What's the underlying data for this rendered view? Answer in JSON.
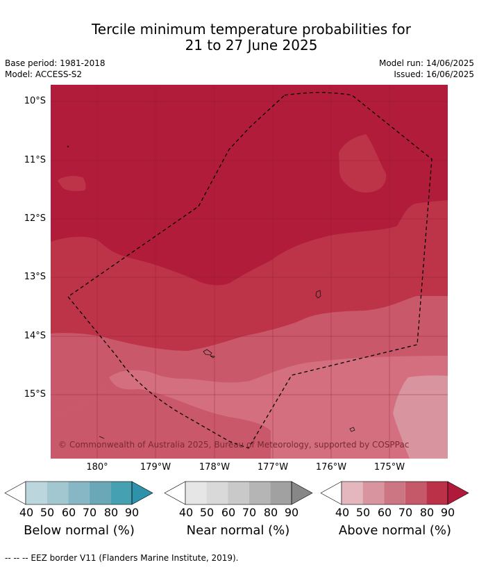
{
  "title": {
    "line1": "Tercile minimum temperature probabilities for",
    "line2": "21 to 27 June 2025"
  },
  "meta": {
    "base_period": "Base period: 1981-2018",
    "model": "Model: ACCESS-S2",
    "model_run": "Model run: 14/06/2025",
    "issued": "Issued: 16/06/2025"
  },
  "map": {
    "lat_labels": [
      "10°S",
      "11°S",
      "12°S",
      "13°S",
      "14°S",
      "15°S"
    ],
    "lon_labels": [
      "180°",
      "179°W",
      "178°W",
      "177°W",
      "176°W",
      "175°W"
    ],
    "copyright": "© Commonwealth of Australia 2025, Bureau of Meteorology, supported by COSPPac",
    "colors": {
      "above_80_90": "#b11c3b",
      "above_70_80": "#bd3449",
      "above_60_70": "#c9586a",
      "above_50_60": "#d36f7f",
      "above_40_50": "#d8949f"
    }
  },
  "colorbars": [
    {
      "title": "Below normal (%)",
      "ticks": [
        "40",
        "50",
        "60",
        "70",
        "80",
        "90"
      ],
      "colors": [
        "#ffffff",
        "#bcd6de",
        "#a3c7d1",
        "#87b7c4",
        "#6aa8b7",
        "#45a0b2",
        "#2e93aa"
      ]
    },
    {
      "title": "Near normal (%)",
      "ticks": [
        "40",
        "50",
        "60",
        "70",
        "80",
        "90"
      ],
      "colors": [
        "#ffffff",
        "#e6e6e6",
        "#d9d9d9",
        "#c9c9c9",
        "#b5b5b5",
        "#a1a1a1",
        "#878787"
      ]
    },
    {
      "title": "Above normal (%)",
      "ticks": [
        "40",
        "50",
        "60",
        "70",
        "80",
        "90"
      ],
      "colors": [
        "#ffffff",
        "#e4b7be",
        "#d8949f",
        "#cd7683",
        "#c55869",
        "#bb3148",
        "#b1193a"
      ]
    }
  ],
  "footer": "--  --  -- EEZ border V11 (Flanders Marine Institute, 2019)."
}
